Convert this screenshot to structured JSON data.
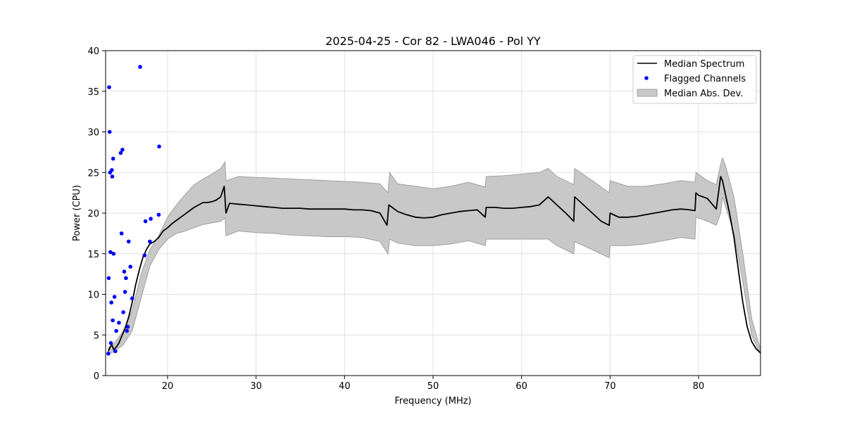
{
  "chart_data": {
    "type": "line",
    "title": "2025-04-25 - Cor 82 - LWA046 - Pol YY",
    "xlabel": "Frequency (MHz)",
    "ylabel": "Power (CPU)",
    "xlim": [
      13,
      87
    ],
    "ylim": [
      0,
      40
    ],
    "xticks": [
      20,
      30,
      40,
      50,
      60,
      70,
      80
    ],
    "yticks": [
      0,
      5,
      10,
      15,
      20,
      25,
      30,
      35,
      40
    ],
    "grid": true,
    "legend_position": "top-right",
    "legend": [
      "Median Spectrum",
      "Flagged Channels",
      "Median Abs. Dev."
    ],
    "colors": {
      "line": "#000000",
      "flagged": "#0000ff",
      "band": "#c8c8c8",
      "band_edge": "#a0a0a0",
      "grid": "#e0e0e0"
    },
    "series": [
      {
        "name": "Median Spectrum",
        "x": [
          13.3,
          13.5,
          13.7,
          13.9,
          14.2,
          14.5,
          14.8,
          15.2,
          15.6,
          16.0,
          16.4,
          16.8,
          17.2,
          17.6,
          18.0,
          18.5,
          19.0,
          19.5,
          20.0,
          20.5,
          21.0,
          21.5,
          22.0,
          22.5,
          23.0,
          23.5,
          24.0,
          24.5,
          25.0,
          25.5,
          26.0,
          26.4,
          26.6,
          27.0,
          28.0,
          29.0,
          30.0,
          31.0,
          32.0,
          33.0,
          34.0,
          35.0,
          36.0,
          37.0,
          38.0,
          39.0,
          40.0,
          41.0,
          42.0,
          43.0,
          44.0,
          44.8,
          45.0,
          46.0,
          47.0,
          48.0,
          49.0,
          50.0,
          51.0,
          52.0,
          53.0,
          54.0,
          55.0,
          55.9,
          56.0,
          57.0,
          58.0,
          59.0,
          60.0,
          61.0,
          62.0,
          63.0,
          64.0,
          65.0,
          65.9,
          66.0,
          67.0,
          68.0,
          69.0,
          69.9,
          70.0,
          71.0,
          72.0,
          73.0,
          74.0,
          75.0,
          76.0,
          77.0,
          78.0,
          79.0,
          79.6,
          79.7,
          80.0,
          81.0,
          82.0,
          82.5,
          82.7,
          83.0,
          83.5,
          84.0,
          84.5,
          85.0,
          85.5,
          86.0,
          86.5,
          87.0
        ],
        "values": [
          3.0,
          3.5,
          3.8,
          3.2,
          3.5,
          4.0,
          4.8,
          5.8,
          7.2,
          9.0,
          11.2,
          13.0,
          14.5,
          15.5,
          16.2,
          16.5,
          17.0,
          17.8,
          18.2,
          18.7,
          19.1,
          19.5,
          19.9,
          20.3,
          20.7,
          21.0,
          21.3,
          21.3,
          21.4,
          21.6,
          22.0,
          23.3,
          20.0,
          21.2,
          21.1,
          21.0,
          20.9,
          20.8,
          20.7,
          20.6,
          20.6,
          20.6,
          20.5,
          20.5,
          20.5,
          20.5,
          20.5,
          20.4,
          20.4,
          20.3,
          20.0,
          18.5,
          21.0,
          20.2,
          19.8,
          19.5,
          19.4,
          19.5,
          19.8,
          20.0,
          20.2,
          20.3,
          20.4,
          19.5,
          20.7,
          20.7,
          20.6,
          20.6,
          20.7,
          20.8,
          21.0,
          22.0,
          21.0,
          20.0,
          19.0,
          22.0,
          21.0,
          20.0,
          19.0,
          18.5,
          20.0,
          19.5,
          19.5,
          19.6,
          19.8,
          20.0,
          20.2,
          20.4,
          20.5,
          20.4,
          20.3,
          22.5,
          22.2,
          21.8,
          20.5,
          24.5,
          24.0,
          22.5,
          20.0,
          17.0,
          13.0,
          9.0,
          6.0,
          4.2,
          3.3,
          2.8
        ]
      },
      {
        "name": "Median Abs. Dev.",
        "x": [
          13.3,
          14.0,
          15.0,
          16.0,
          17.0,
          18.0,
          19.0,
          20.0,
          21.0,
          22.0,
          23.0,
          24.0,
          25.0,
          26.0,
          26.5,
          26.6,
          28.0,
          30.0,
          32.0,
          34.0,
          36.0,
          38.0,
          40.0,
          42.0,
          44.0,
          44.9,
          45.1,
          46.0,
          48.0,
          50.0,
          52.0,
          54.0,
          55.9,
          56.0,
          58.0,
          60.0,
          62.0,
          63.0,
          64.0,
          65.9,
          66.0,
          68.0,
          69.9,
          70.0,
          72.0,
          74.0,
          76.0,
          78.0,
          79.6,
          79.7,
          81.0,
          82.0,
          82.5,
          82.7,
          83.0,
          84.0,
          85.0,
          86.0,
          87.0
        ],
        "upper": [
          3.4,
          4.0,
          5.5,
          8.0,
          12.5,
          15.5,
          17.2,
          19.5,
          21.0,
          22.3,
          23.5,
          24.2,
          24.8,
          25.5,
          26.3,
          24.0,
          24.5,
          24.4,
          24.3,
          24.2,
          24.1,
          24.0,
          23.9,
          23.8,
          23.6,
          22.5,
          25.0,
          23.6,
          23.3,
          23.0,
          23.3,
          23.8,
          23.2,
          24.5,
          24.6,
          24.8,
          25.0,
          25.5,
          24.5,
          23.5,
          25.5,
          24.0,
          22.5,
          24.0,
          23.3,
          23.3,
          23.6,
          24.0,
          23.8,
          25.0,
          24.0,
          23.5,
          26.0,
          26.8,
          26.0,
          22.0,
          15.0,
          7.0,
          3.2
        ],
        "lower": [
          2.6,
          3.0,
          3.8,
          5.5,
          9.5,
          13.5,
          15.5,
          16.8,
          17.5,
          17.8,
          18.2,
          18.6,
          18.8,
          19.0,
          19.4,
          17.2,
          17.8,
          17.6,
          17.5,
          17.3,
          17.2,
          17.1,
          17.1,
          17.0,
          16.5,
          15.0,
          16.8,
          16.3,
          16.0,
          16.0,
          16.2,
          16.6,
          16.0,
          16.8,
          16.8,
          16.8,
          16.8,
          16.8,
          16.0,
          15.0,
          16.5,
          15.5,
          14.5,
          16.0,
          16.0,
          16.2,
          16.6,
          17.0,
          16.8,
          19.5,
          19.0,
          18.5,
          20.0,
          22.0,
          21.0,
          17.5,
          11.5,
          5.0,
          2.6
        ]
      },
      {
        "name": "Flagged Channels",
        "x": [
          13.3,
          13.35,
          13.4,
          13.45,
          13.5,
          13.55,
          13.6,
          13.65,
          13.7,
          13.75,
          13.8,
          13.85,
          13.9,
          14.0,
          14.1,
          14.2,
          14.5,
          14.7,
          14.8,
          14.9,
          15.0,
          15.1,
          15.2,
          15.3,
          15.4,
          15.5,
          15.6,
          15.8,
          16.0,
          16.9,
          17.4,
          17.5,
          18.0,
          18.1,
          19.0,
          19.05
        ],
        "values": [
          2.7,
          12.0,
          35.5,
          30.0,
          25.0,
          15.2,
          4.0,
          9.0,
          25.3,
          24.5,
          6.8,
          26.7,
          15.0,
          9.7,
          3.0,
          5.5,
          6.5,
          27.4,
          17.5,
          27.8,
          7.8,
          12.8,
          10.3,
          12.0,
          5.5,
          6.0,
          16.5,
          13.4,
          9.5,
          38.0,
          14.8,
          19.0,
          16.5,
          19.3,
          19.8,
          28.2
        ]
      }
    ]
  }
}
